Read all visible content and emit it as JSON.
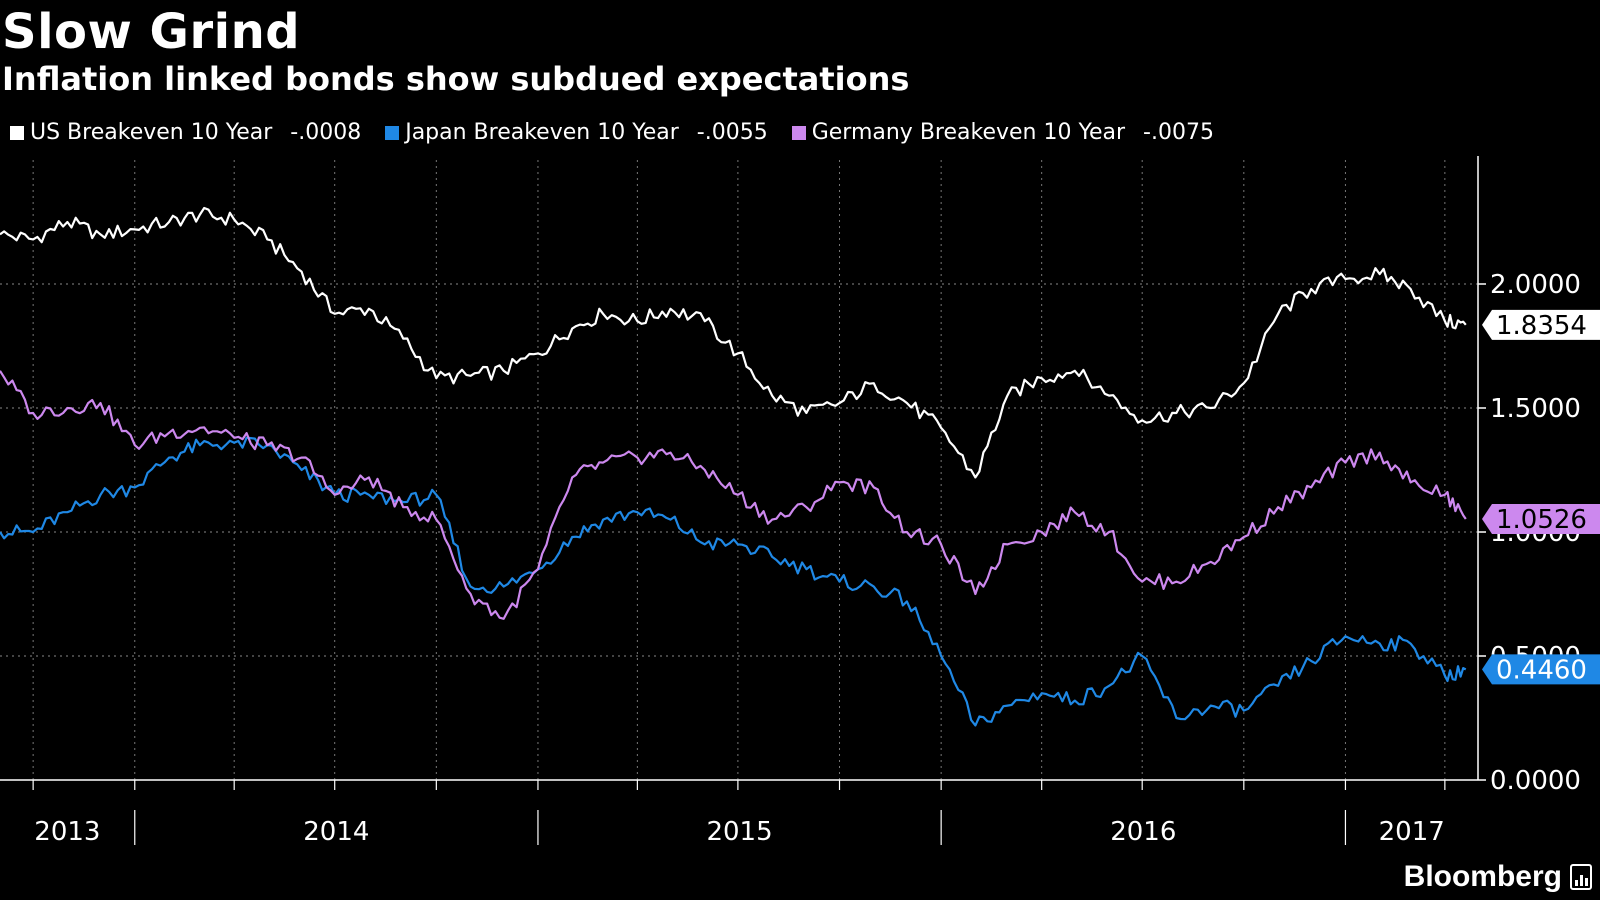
{
  "header": {
    "title": "Slow Grind",
    "subtitle": "Inflation linked bonds show subdued expectations"
  },
  "legend": [
    {
      "label": "US Breakeven 10 Year",
      "value": "-.0008",
      "color": "#ffffff"
    },
    {
      "label": "Japan Breakeven 10 Year",
      "value": "-.0055",
      "color": "#1f88e5"
    },
    {
      "label": "Germany Breakeven 10 Year",
      "value": "-.0075",
      "color": "#cc88ee"
    }
  ],
  "brand": {
    "name": "Bloomberg"
  },
  "chart_data": {
    "type": "line",
    "title": "Slow Grind",
    "subtitle": "Inflation linked bonds show subdued expectations",
    "xlabel": "",
    "ylabel": "",
    "x_range": [
      "2013-09",
      "2017-03"
    ],
    "ylim": [
      0,
      2.5
    ],
    "y_ticks": [
      "0.0000",
      "0.5000",
      "1.0000",
      "1.5000",
      "2.0000"
    ],
    "x_tick_labels": [
      "2013",
      "2014",
      "2015",
      "2016",
      "2017"
    ],
    "grid": true,
    "legend_position": "top-left",
    "series": [
      {
        "name": "US Breakeven 10 Year",
        "color": "#ffffff",
        "last_value": "1.8354",
        "points": [
          [
            "2013-09-01",
            2.2
          ],
          [
            "2013-10-01",
            2.18
          ],
          [
            "2013-11-01",
            2.25
          ],
          [
            "2013-12-01",
            2.2
          ],
          [
            "2014-01-01",
            2.22
          ],
          [
            "2014-02-01",
            2.25
          ],
          [
            "2014-03-01",
            2.28
          ],
          [
            "2014-04-01",
            2.26
          ],
          [
            "2014-05-01",
            2.18
          ],
          [
            "2014-06-01",
            2.05
          ],
          [
            "2014-07-01",
            1.88
          ],
          [
            "2014-08-01",
            1.9
          ],
          [
            "2014-09-01",
            1.78
          ],
          [
            "2014-10-01",
            1.62
          ],
          [
            "2014-11-01",
            1.63
          ],
          [
            "2014-12-01",
            1.65
          ],
          [
            "2015-01-01",
            1.72
          ],
          [
            "2015-02-01",
            1.82
          ],
          [
            "2015-03-01",
            1.88
          ],
          [
            "2015-04-01",
            1.85
          ],
          [
            "2015-05-01",
            1.9
          ],
          [
            "2015-06-01",
            1.85
          ],
          [
            "2015-07-01",
            1.72
          ],
          [
            "2015-08-01",
            1.55
          ],
          [
            "2015-09-01",
            1.48
          ],
          [
            "2015-10-01",
            1.52
          ],
          [
            "2015-11-01",
            1.6
          ],
          [
            "2015-12-01",
            1.52
          ],
          [
            "2016-01-01",
            1.42
          ],
          [
            "2016-02-01",
            1.22
          ],
          [
            "2016-03-01",
            1.55
          ],
          [
            "2016-04-01",
            1.62
          ],
          [
            "2016-05-01",
            1.65
          ],
          [
            "2016-06-01",
            1.55
          ],
          [
            "2016-07-01",
            1.45
          ],
          [
            "2016-08-01",
            1.48
          ],
          [
            "2016-09-01",
            1.5
          ],
          [
            "2016-10-01",
            1.6
          ],
          [
            "2016-11-01",
            1.88
          ],
          [
            "2016-12-01",
            1.98
          ],
          [
            "2017-01-01",
            2.02
          ],
          [
            "2017-02-01",
            2.04
          ],
          [
            "2017-03-01",
            1.98
          ],
          [
            "2017-04-01",
            1.85
          ],
          [
            "2017-04-20",
            1.8354
          ]
        ]
      },
      {
        "name": "Japan Breakeven 10 Year",
        "color": "#1f88e5",
        "last_value": "0.4460",
        "points": [
          [
            "2013-09-01",
            1.0
          ],
          [
            "2013-10-01",
            1.0
          ],
          [
            "2013-11-01",
            1.08
          ],
          [
            "2013-12-01",
            1.15
          ],
          [
            "2014-01-01",
            1.18
          ],
          [
            "2014-02-01",
            1.3
          ],
          [
            "2014-03-01",
            1.35
          ],
          [
            "2014-04-01",
            1.36
          ],
          [
            "2014-05-01",
            1.35
          ],
          [
            "2014-06-01",
            1.25
          ],
          [
            "2014-07-01",
            1.15
          ],
          [
            "2014-08-01",
            1.15
          ],
          [
            "2014-09-01",
            1.12
          ],
          [
            "2014-10-01",
            1.15
          ],
          [
            "2014-11-01",
            0.78
          ],
          [
            "2014-12-01",
            0.78
          ],
          [
            "2015-01-01",
            0.85
          ],
          [
            "2015-02-01",
            0.98
          ],
          [
            "2015-03-01",
            1.05
          ],
          [
            "2015-04-01",
            1.08
          ],
          [
            "2015-05-01",
            1.05
          ],
          [
            "2015-06-01",
            0.95
          ],
          [
            "2015-07-01",
            0.95
          ],
          [
            "2015-08-01",
            0.9
          ],
          [
            "2015-09-01",
            0.85
          ],
          [
            "2015-10-01",
            0.8
          ],
          [
            "2015-11-01",
            0.78
          ],
          [
            "2015-12-01",
            0.72
          ],
          [
            "2016-01-01",
            0.5
          ],
          [
            "2016-02-01",
            0.22
          ],
          [
            "2016-03-01",
            0.3
          ],
          [
            "2016-04-01",
            0.35
          ],
          [
            "2016-05-01",
            0.32
          ],
          [
            "2016-06-01",
            0.38
          ],
          [
            "2016-07-01",
            0.5
          ],
          [
            "2016-08-01",
            0.25
          ],
          [
            "2016-09-01",
            0.3
          ],
          [
            "2016-10-01",
            0.28
          ],
          [
            "2016-11-01",
            0.38
          ],
          [
            "2016-12-01",
            0.48
          ],
          [
            "2017-01-01",
            0.58
          ],
          [
            "2017-02-01",
            0.55
          ],
          [
            "2017-03-01",
            0.55
          ],
          [
            "2017-04-01",
            0.42
          ],
          [
            "2017-04-20",
            0.446
          ]
        ]
      },
      {
        "name": "Germany Breakeven 10 Year",
        "color": "#cc88ee",
        "last_value": "1.0526",
        "points": [
          [
            "2013-09-01",
            1.65
          ],
          [
            "2013-10-01",
            1.48
          ],
          [
            "2013-11-01",
            1.5
          ],
          [
            "2013-12-01",
            1.52
          ],
          [
            "2014-01-01",
            1.35
          ],
          [
            "2014-02-01",
            1.4
          ],
          [
            "2014-03-01",
            1.42
          ],
          [
            "2014-04-01",
            1.38
          ],
          [
            "2014-05-01",
            1.35
          ],
          [
            "2014-06-01",
            1.3
          ],
          [
            "2014-07-01",
            1.15
          ],
          [
            "2014-08-01",
            1.22
          ],
          [
            "2014-09-01",
            1.1
          ],
          [
            "2014-10-01",
            1.05
          ],
          [
            "2014-11-01",
            0.75
          ],
          [
            "2014-12-01",
            0.65
          ],
          [
            "2015-01-01",
            0.85
          ],
          [
            "2015-02-01",
            1.22
          ],
          [
            "2015-03-01",
            1.28
          ],
          [
            "2015-04-01",
            1.3
          ],
          [
            "2015-05-01",
            1.32
          ],
          [
            "2015-06-01",
            1.25
          ],
          [
            "2015-07-01",
            1.15
          ],
          [
            "2015-08-01",
            1.05
          ],
          [
            "2015-09-01",
            1.1
          ],
          [
            "2015-10-01",
            1.2
          ],
          [
            "2015-11-01",
            1.18
          ],
          [
            "2015-12-01",
            1.0
          ],
          [
            "2016-01-01",
            0.95
          ],
          [
            "2016-02-01",
            0.75
          ],
          [
            "2016-03-01",
            0.95
          ],
          [
            "2016-04-01",
            1.0
          ],
          [
            "2016-05-01",
            1.08
          ],
          [
            "2016-06-01",
            1.0
          ],
          [
            "2016-07-01",
            0.8
          ],
          [
            "2016-08-01",
            0.8
          ],
          [
            "2016-09-01",
            0.88
          ],
          [
            "2016-10-01",
            0.98
          ],
          [
            "2016-11-01",
            1.1
          ],
          [
            "2016-12-01",
            1.18
          ],
          [
            "2017-01-01",
            1.28
          ],
          [
            "2017-02-01",
            1.32
          ],
          [
            "2017-03-01",
            1.2
          ],
          [
            "2017-04-01",
            1.15
          ],
          [
            "2017-04-20",
            1.0526
          ]
        ]
      }
    ]
  }
}
